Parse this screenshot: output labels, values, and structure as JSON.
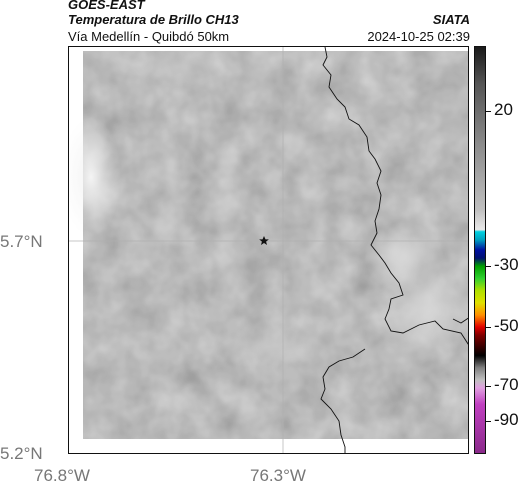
{
  "header": {
    "satellite": "GOES-EAST",
    "product": "Temperatura de Brillo CH13",
    "region": "Vía Medellín - Quibdó 50km",
    "organization": "SIATA",
    "datetime": "2024-10-25 02:39"
  },
  "axes": {
    "lat_labels": [
      "5.7°N",
      "5.2°N"
    ],
    "lon_labels": [
      "76.8°W",
      "76.3°W"
    ]
  },
  "colorbar": {
    "labels": [
      "20",
      "-30",
      "-50",
      "-70",
      "-90"
    ],
    "colors": {
      "top": "#1a1a1a",
      "mid_gray": "#bfbfbf",
      "cyan": "#00d0e0",
      "blue": "#0010a0",
      "green": "#00c000",
      "yellow": "#e0e000",
      "red": "#e00000",
      "black": "#000000",
      "magenta": "#c040c0"
    }
  },
  "map": {
    "marker_icon": "star-icon",
    "land_tone": "#8a8a8a"
  }
}
